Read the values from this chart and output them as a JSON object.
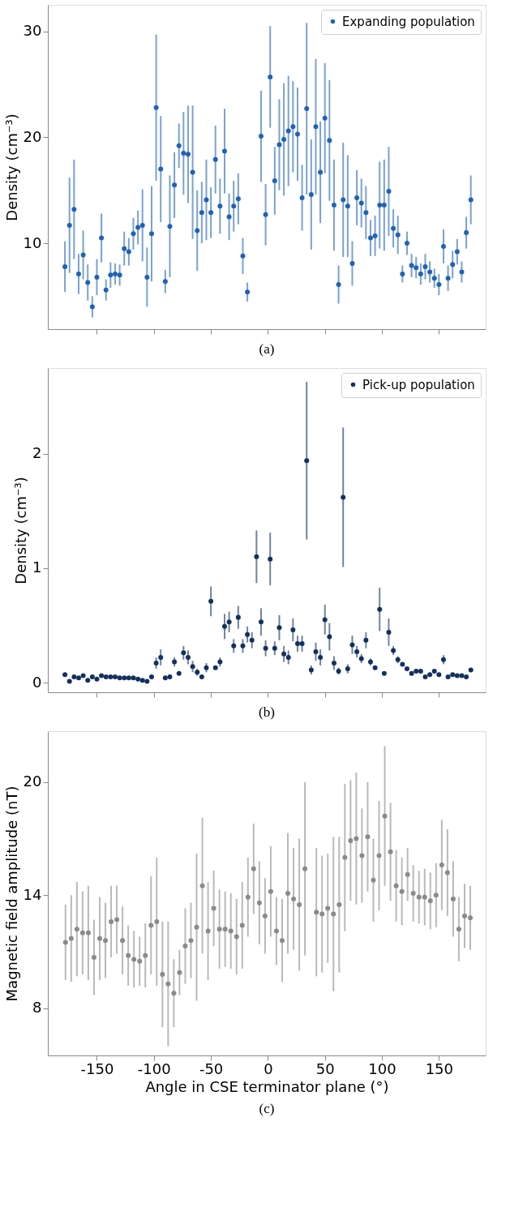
{
  "chart_data": [
    {
      "type": "scatter",
      "ylabel": "Density (cm⁻³)",
      "annotations": [
        "(a)"
      ],
      "legend": "top right",
      "tick_labels": "y",
      "marker": "circle",
      "xlim": [
        -193,
        191
      ],
      "xticks": [
        -150,
        -100,
        -50,
        0,
        50,
        100,
        150
      ],
      "ylim": [
        1.9,
        32.5
      ],
      "yticks": [
        10,
        20,
        30
      ],
      "x": [
        -178,
        -174,
        -170,
        -166,
        -162,
        -158,
        -154,
        -150,
        -146,
        -142,
        -138,
        -134,
        -130,
        -126,
        -122,
        -118,
        -114,
        -110,
        -106,
        -102,
        -98,
        -94,
        -90,
        -86,
        -82,
        -78,
        -74,
        -70,
        -66,
        -62,
        -58,
        -54,
        -50,
        -46,
        -42,
        -38,
        -34,
        -30,
        -26,
        -22,
        -18,
        -14,
        -10,
        -6,
        -2,
        2,
        6,
        10,
        14,
        18,
        22,
        26,
        30,
        34,
        38,
        42,
        46,
        50,
        54,
        58,
        62,
        66,
        70,
        74,
        78,
        82,
        86,
        90,
        94,
        98,
        102,
        106,
        110,
        114,
        118,
        122,
        126,
        130,
        134,
        138,
        142,
        146,
        150,
        154,
        158,
        162,
        166,
        170,
        174,
        178
      ],
      "series": [
        {
          "name": "Expanding population",
          "color": "#1f63b5",
          "values": [
            7.8,
            11.7,
            13.2,
            7.1,
            8.9,
            6.3,
            4.0,
            6.8,
            10.5,
            5.6,
            7.0,
            7.1,
            7.0,
            9.5,
            9.2,
            10.9,
            11.5,
            11.7,
            6.8,
            10.9,
            22.8,
            17.0,
            6.4,
            11.6,
            15.5,
            19.2,
            18.5,
            18.4,
            16.7,
            11.2,
            12.9,
            14.1,
            12.9,
            17.9,
            13.5,
            18.7,
            12.5,
            13.5,
            14.2,
            8.8,
            5.4,
            null,
            null,
            20.1,
            12.7,
            25.7,
            15.9,
            19.3,
            19.8,
            20.6,
            21.0,
            20.3,
            14.3,
            22.7,
            14.6,
            21.0,
            16.7,
            21.8,
            19.7,
            13.6,
            6.1,
            14.1,
            13.5,
            8.1,
            14.3,
            13.8,
            12.9,
            10.5,
            10.7,
            13.6,
            13.6,
            14.9,
            11.4,
            10.8,
            7.1,
            10.0,
            7.9,
            7.7,
            7.1,
            7.8,
            7.3,
            6.7,
            6.1,
            9.7,
            6.7,
            8.0,
            9.2,
            7.3,
            11.0,
            14.1
          ],
          "errors": [
            2.4,
            4.5,
            4.7,
            1.9,
            2.3,
            1.7,
            1.0,
            1.7,
            2.3,
            1.0,
            1.2,
            1.0,
            1.0,
            1.6,
            1.3,
            1.5,
            1.6,
            3.4,
            2.8,
            4.5,
            6.9,
            5.0,
            1.1,
            4.8,
            3.1,
            2.1,
            3.9,
            4.6,
            6.3,
            3.8,
            2.9,
            3.8,
            2.4,
            3.2,
            2.6,
            4.0,
            2.2,
            2.4,
            2.4,
            1.7,
            0.9,
            null,
            null,
            4.3,
            2.9,
            4.8,
            3.2,
            4.3,
            5.3,
            5.2,
            4.3,
            4.4,
            3.1,
            8.1,
            5.2,
            6.4,
            4.8,
            5.2,
            5.7,
            4.3,
            1.8,
            5.4,
            4.8,
            2.1,
            2.6,
            2.3,
            2.5,
            1.7,
            1.9,
            4.1,
            4.3,
            4.2,
            1.8,
            1.8,
            0.8,
            1.1,
            1.1,
            1.0,
            1.0,
            1.2,
            1.0,
            0.9,
            1.0,
            1.6,
            1.2,
            1.3,
            1.2,
            1.0,
            1.5,
            2.3
          ]
        }
      ]
    },
    {
      "type": "scatter",
      "ylabel": "Density (cm⁻³)",
      "annotations": [
        "(b)"
      ],
      "legend": "top right",
      "tick_labels": "y",
      "marker": "circle",
      "xlim": [
        -193,
        191
      ],
      "xticks": [
        -150,
        -100,
        -50,
        0,
        50,
        100,
        150
      ],
      "ylim": [
        -0.085,
        2.75
      ],
      "yticks": [
        0,
        1,
        2
      ],
      "x": [
        -178,
        -174,
        -170,
        -166,
        -162,
        -158,
        -154,
        -150,
        -146,
        -142,
        -138,
        -134,
        -130,
        -126,
        -122,
        -118,
        -114,
        -110,
        -106,
        -102,
        -98,
        -94,
        -90,
        -86,
        -82,
        -78,
        -74,
        -70,
        -66,
        -62,
        -58,
        -54,
        -50,
        -46,
        -42,
        -38,
        -34,
        -30,
        -26,
        -22,
        -18,
        -14,
        -10,
        -6,
        -2,
        2,
        6,
        10,
        14,
        18,
        22,
        26,
        30,
        34,
        38,
        42,
        46,
        50,
        54,
        58,
        62,
        66,
        70,
        74,
        78,
        82,
        86,
        90,
        94,
        98,
        102,
        106,
        110,
        114,
        118,
        122,
        126,
        130,
        134,
        138,
        142,
        146,
        150,
        154,
        158,
        162,
        166,
        170,
        174,
        178
      ],
      "series": [
        {
          "name": "Pick-up population",
          "color": "#13315f",
          "values": [
            0.07,
            0.01,
            0.05,
            0.04,
            0.06,
            0.02,
            0.05,
            0.03,
            0.06,
            0.05,
            0.05,
            0.05,
            0.04,
            0.04,
            0.04,
            0.04,
            0.03,
            0.02,
            0.01,
            0.05,
            0.17,
            0.22,
            0.04,
            0.05,
            0.18,
            0.08,
            0.26,
            0.22,
            0.14,
            0.09,
            0.05,
            0.13,
            0.71,
            0.13,
            0.18,
            0.49,
            0.53,
            0.32,
            0.57,
            0.32,
            0.42,
            0.37,
            1.1,
            0.53,
            0.3,
            1.08,
            0.3,
            0.48,
            0.25,
            0.22,
            0.46,
            0.34,
            0.34,
            1.94,
            0.11,
            0.27,
            0.22,
            0.55,
            0.4,
            0.17,
            0.1,
            1.62,
            0.12,
            0.33,
            0.27,
            0.21,
            0.37,
            0.18,
            0.13,
            0.64,
            0.08,
            0.44,
            0.28,
            0.2,
            0.16,
            0.12,
            0.08,
            0.1,
            0.1,
            0.05,
            0.07,
            0.1,
            0.07,
            0.2,
            0.05,
            0.07,
            0.06,
            0.06,
            0.05,
            0.11
          ],
          "errors": [
            null,
            null,
            null,
            null,
            null,
            null,
            null,
            null,
            null,
            null,
            null,
            null,
            null,
            null,
            null,
            null,
            null,
            null,
            null,
            null,
            0.05,
            0.07,
            null,
            0.02,
            0.04,
            null,
            0.06,
            0.06,
            0.05,
            0.03,
            null,
            0.04,
            0.13,
            null,
            0.04,
            0.11,
            0.09,
            0.06,
            0.1,
            0.06,
            0.07,
            0.07,
            0.23,
            0.12,
            0.07,
            0.23,
            0.06,
            0.11,
            0.07,
            0.06,
            0.1,
            0.07,
            0.07,
            0.69,
            0.04,
            0.08,
            0.07,
            0.13,
            0.12,
            0.06,
            0.03,
            0.61,
            0.04,
            0.08,
            0.05,
            0.04,
            0.07,
            0.03,
            null,
            0.19,
            null,
            0.12,
            0.04,
            0.03,
            null,
            null,
            null,
            null,
            null,
            null,
            null,
            null,
            null,
            0.04,
            null,
            null,
            null,
            null,
            null,
            null
          ]
        }
      ]
    },
    {
      "type": "scatter",
      "xlabel": "Angle in CSE terminator plane (°)",
      "ylabel": "Magnetic field amplitude (nT)",
      "annotations": [
        "(c)"
      ],
      "marker": "circle",
      "xlim": [
        -193,
        191
      ],
      "xticks": [
        -150,
        -100,
        -50,
        0,
        50,
        100,
        150
      ],
      "ylim": [
        5.5,
        22.7
      ],
      "yticks": [
        8,
        14,
        20
      ],
      "x": [
        -177.5,
        -172.5,
        -167.5,
        -162.5,
        -157.5,
        -152.5,
        -147.5,
        -142.5,
        -137.5,
        -132.5,
        -127.5,
        -122.5,
        -117.5,
        -112.5,
        -107.5,
        -102.5,
        -97.5,
        -92.5,
        -87.5,
        -82.5,
        -77.5,
        -72.5,
        -67.5,
        -62.5,
        -57.5,
        -52.5,
        -47.5,
        -42.5,
        -37.5,
        -32.5,
        -27.5,
        -22.5,
        -17.5,
        -12.5,
        -7.5,
        -2.5,
        2.5,
        7.5,
        12.5,
        17.5,
        22.5,
        27.5,
        32.5,
        37.5,
        42.5,
        47.5,
        52.5,
        57.5,
        62.5,
        67.5,
        72.5,
        77.5,
        82.5,
        87.5,
        92.5,
        97.5,
        102.5,
        107.5,
        112.5,
        117.5,
        122.5,
        127.5,
        132.5,
        137.5,
        142.5,
        147.5,
        152.5,
        157.5,
        162.5,
        167.5,
        172.5,
        177.5
      ],
      "series": [
        {
          "color": "#8a8a8a",
          "values": [
            11.5,
            11.7,
            12.2,
            12.0,
            12.0,
            10.7,
            11.7,
            11.6,
            12.6,
            12.7,
            11.6,
            10.8,
            10.6,
            10.5,
            10.8,
            12.4,
            12.6,
            9.8,
            9.3,
            8.8,
            9.9,
            11.3,
            11.6,
            12.3,
            14.5,
            12.1,
            13.3,
            12.2,
            12.2,
            12.1,
            11.8,
            12.4,
            13.9,
            15.4,
            13.6,
            12.9,
            14.2,
            12.1,
            11.6,
            14.1,
            13.8,
            13.5,
            15.4,
            null,
            13.1,
            13.0,
            13.3,
            13.0,
            13.5,
            16.0,
            16.9,
            17.0,
            16.1,
            17.1,
            14.8,
            16.1,
            18.2,
            16.3,
            14.5,
            14.2,
            15.1,
            14.1,
            13.9,
            13.9,
            13.7,
            14.0,
            15.6,
            15.2,
            13.8,
            12.2,
            12.9,
            12.8
          ],
          "errors": [
            2.0,
            2.3,
            2.5,
            2.2,
            2.5,
            2.0,
            2.2,
            2.0,
            1.9,
            1.8,
            1.8,
            1.6,
            1.5,
            1.3,
            1.7,
            2.6,
            3.4,
            2.8,
            3.3,
            1.8,
            1.2,
            2.0,
            2.0,
            3.9,
            3.6,
            2.6,
            2.0,
            2.1,
            2.0,
            2.0,
            2.0,
            2.3,
            2.1,
            2.4,
            2.2,
            2.0,
            2.4,
            1.8,
            2.2,
            3.2,
            2.7,
            3.5,
            4.6,
            null,
            3.4,
            3.1,
            2.9,
            4.1,
            3.6,
            3.9,
            3.2,
            3.5,
            2.5,
            2.9,
            2.2,
            2.9,
            3.7,
            2.6,
            1.9,
            1.8,
            1.4,
            1.5,
            1.4,
            1.5,
            1.5,
            1.7,
            2.4,
            2.3,
            2.0,
            1.7,
            1.7,
            1.7
          ]
        }
      ]
    }
  ]
}
